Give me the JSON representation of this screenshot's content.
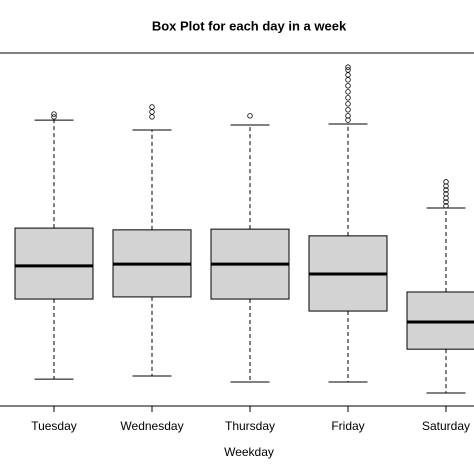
{
  "chart_data": {
    "type": "box",
    "title": "Box Plot for each day in a week",
    "x_label": "Weekday",
    "categories": [
      "Tuesday",
      "Wednesday",
      "Thursday",
      "Friday",
      "Saturday"
    ],
    "color": "#d3d3d3",
    "ylim": [
      0,
      100
    ],
    "boxes": [
      {
        "whisker_low": 7.6,
        "q1": 30.3,
        "median": 39.7,
        "q3": 50.4,
        "whisker_high": 81.0,
        "outliers": [
          81.9,
          82.7
        ]
      },
      {
        "whisker_low": 8.5,
        "q1": 30.9,
        "median": 40.2,
        "q3": 49.9,
        "whisker_high": 78.2,
        "outliers": [
          81.9,
          83.3,
          84.7
        ]
      },
      {
        "whisker_low": 6.8,
        "q1": 30.3,
        "median": 40.2,
        "q3": 50.1,
        "whisker_high": 79.6,
        "outliers": [
          82.2
        ]
      },
      {
        "whisker_low": 6.8,
        "q1": 26.9,
        "median": 37.4,
        "q3": 48.2,
        "whisker_high": 79.9,
        "outliers": [
          81.0,
          82.2,
          83.9,
          85.6,
          87.3,
          89.0,
          90.7,
          92.4,
          93.8,
          95.2,
          96.0
        ]
      },
      {
        "whisker_low": 3.7,
        "q1": 16.1,
        "median": 23.8,
        "q3": 32.3,
        "whisker_high": 56.1,
        "outliers": [
          56.7,
          57.8,
          58.9,
          60.1,
          61.2,
          62.3,
          63.5
        ]
      }
    ]
  }
}
